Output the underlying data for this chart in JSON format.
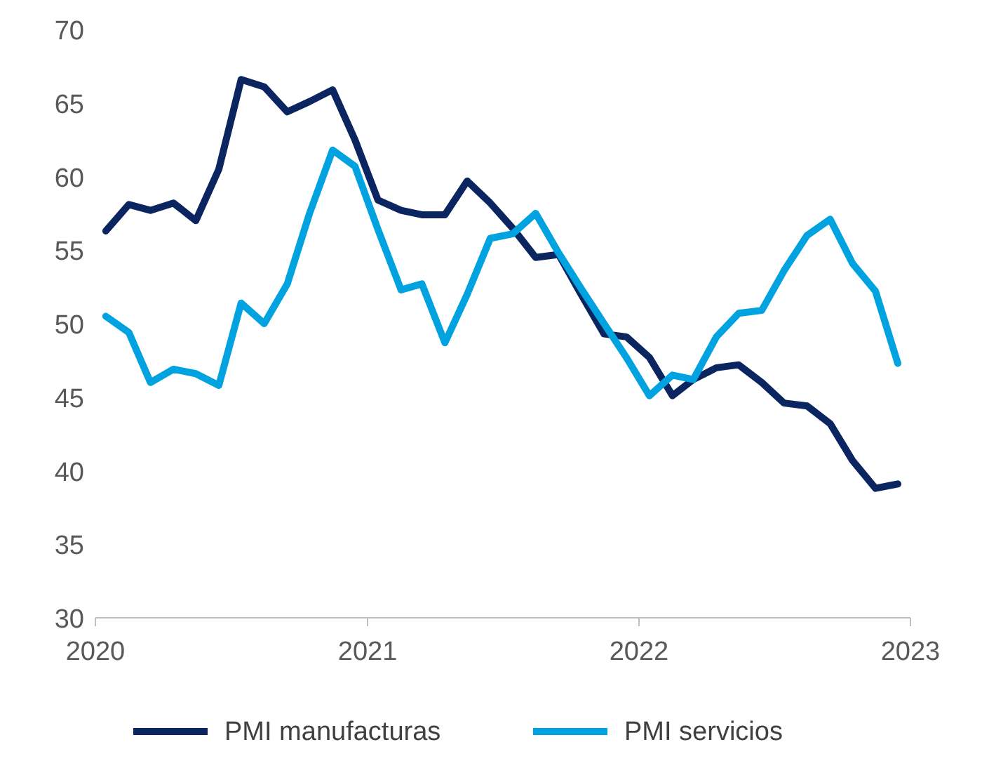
{
  "chart_data": {
    "type": "line",
    "x": [
      "2020-01-15",
      "2020-02-15",
      "2020-03-15",
      "2020-04-15",
      "2020-05-15",
      "2020-06-15",
      "2020-07-15",
      "2020-08-15",
      "2020-09-15",
      "2020-10-15",
      "2020-11-15",
      "2020-12-15",
      "2021-01-15",
      "2021-02-15",
      "2021-03-15",
      "2021-04-15",
      "2021-05-15",
      "2021-06-15",
      "2021-07-15",
      "2021-08-15",
      "2021-09-15",
      "2021-10-15",
      "2021-11-15",
      "2021-12-15",
      "2022-01-15",
      "2022-02-15",
      "2022-03-15",
      "2022-04-15",
      "2022-05-15",
      "2022-06-15",
      "2022-07-15",
      "2022-08-15",
      "2022-09-15",
      "2022-10-15",
      "2022-11-15",
      "2022-12-15"
    ],
    "series": [
      {
        "name": "PMI manufacturas",
        "color": "#0b2561",
        "values": [
          56.3,
          58.1,
          57.7,
          58.2,
          57.0,
          60.5,
          66.6,
          66.1,
          64.4,
          65.1,
          65.9,
          62.5,
          58.4,
          57.7,
          57.4,
          57.4,
          59.7,
          58.2,
          56.5,
          54.5,
          54.7,
          52.0,
          49.3,
          49.1,
          47.7,
          45.1,
          46.2,
          47.0,
          47.2,
          46.0,
          44.6,
          44.4,
          43.2,
          40.7,
          38.8,
          39.1
        ]
      },
      {
        "name": "PMI servicios",
        "color": "#00a3e0",
        "values": [
          50.5,
          49.4,
          46.0,
          46.9,
          46.6,
          45.8,
          51.4,
          50.0,
          52.7,
          57.5,
          61.8,
          60.7,
          56.4,
          52.3,
          52.7,
          48.7,
          52.0,
          55.8,
          56.1,
          57.5,
          54.8,
          52.4,
          50.0,
          47.7,
          45.1,
          46.5,
          46.2,
          49.1,
          50.7,
          50.9,
          53.6,
          56.0,
          57.1,
          54.1,
          52.2,
          47.3
        ]
      }
    ],
    "xlim": [
      "2020-01-01",
      "2023-01-01"
    ],
    "xticks": [
      {
        "value": "2020-01-01",
        "label": "2020"
      },
      {
        "value": "2021-01-01",
        "label": "2021"
      },
      {
        "value": "2022-01-01",
        "label": "2022"
      },
      {
        "value": "2023-01-01",
        "label": "2023"
      }
    ],
    "ylim": [
      30,
      70
    ],
    "yticks": [
      30,
      35,
      40,
      45,
      50,
      55,
      60,
      65,
      70
    ],
    "grid": false,
    "legend": "bottom",
    "marker": "none",
    "line_style": "solid"
  }
}
